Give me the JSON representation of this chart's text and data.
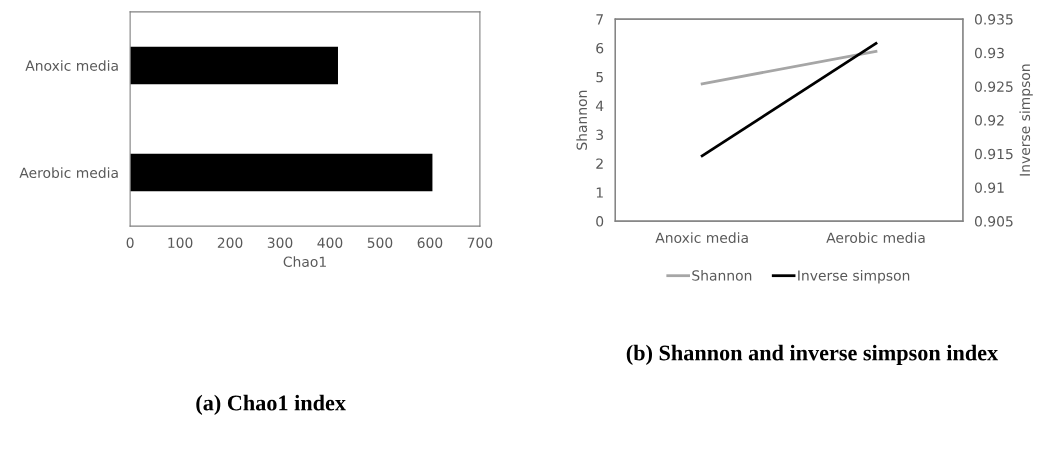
{
  "chart_data": [
    {
      "type": "bar",
      "orientation": "horizontal",
      "title": "(a) Chao1 index",
      "xlabel": "Chao1",
      "categories": [
        "Anoxic media",
        "Aerobic media"
      ],
      "values": [
        416,
        605
      ],
      "color": "#000000",
      "xlim": [
        0,
        700
      ],
      "xticks": [
        0,
        100,
        200,
        300,
        400,
        500,
        600,
        700
      ],
      "grid": false,
      "legend": false
    },
    {
      "type": "line",
      "title": "(b) Shannon and inverse simpson index",
      "ylabel": "Shannon",
      "y2label": "Inverse simpson",
      "categories": [
        "Anoxic media",
        "Aerobic media"
      ],
      "series": [
        {
          "name": "Shannon",
          "color": "#a6a6a6",
          "values": [
            4.76,
            5.88
          ]
        },
        {
          "name": "Inverse simpson",
          "color": "#000000",
          "values": [
            0.9147,
            0.9314
          ],
          "axis": "y2"
        }
      ],
      "ylim": [
        0,
        7
      ],
      "yticks": [
        0,
        1,
        2,
        3,
        4,
        5,
        6,
        7
      ],
      "y2lim": [
        0.905,
        0.935
      ],
      "y2ticks": [
        0.905,
        0.91,
        0.915,
        0.92,
        0.925,
        0.93,
        0.935
      ],
      "grid": false,
      "legend": "bottom",
      "marker": "none",
      "line_style": "solid"
    }
  ]
}
